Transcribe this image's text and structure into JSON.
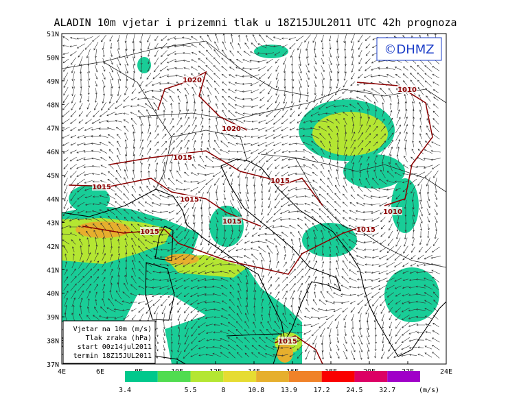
{
  "title": "ALADIN 10m vjetar i prizemni tlak u 18Z15JUL2011 UTC 42h prognoza",
  "logo": "©DHMZ",
  "map": {
    "lat_labels": [
      "51N",
      "50N",
      "49N",
      "48N",
      "47N",
      "46N",
      "45N",
      "44N",
      "43N",
      "42N",
      "41N",
      "40N",
      "39N",
      "38N",
      "37N"
    ],
    "lon_labels": [
      "4E",
      "6E",
      "8E",
      "10E",
      "12E",
      "14E",
      "16E",
      "18E",
      "20E",
      "22E",
      "24E"
    ],
    "isobar_labels": [
      1020,
      1020,
      1015,
      1015,
      1015,
      1015,
      1015,
      1015,
      1010,
      1010,
      1015,
      1015
    ]
  },
  "info_box": {
    "lines": [
      "Vjetar na 10m (m/s)",
      "Tlak zraka (hPa)",
      "start 00z14jul2011",
      "termin 18Z15JUL2011"
    ]
  },
  "legend": {
    "values": [
      3.4,
      5.5,
      8,
      10.8,
      13.9,
      17.2,
      24.5,
      32.7
    ],
    "unit": "(m/s)"
  }
}
